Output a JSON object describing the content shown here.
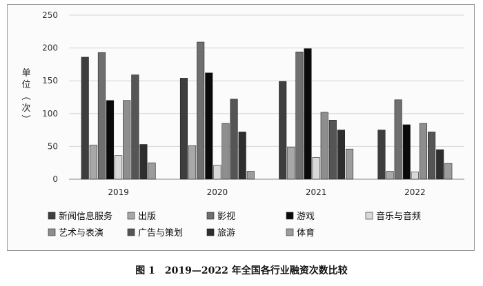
{
  "chart_data": {
    "type": "bar",
    "categories": [
      "2019",
      "2020",
      "2021",
      "2022"
    ],
    "ylabel": "单位（次）",
    "ylim": [
      0,
      250
    ],
    "yticks": [
      0,
      50,
      100,
      150,
      200,
      250
    ],
    "grid": true,
    "legend_position": "bottom",
    "series": [
      {
        "name": "新闻信息服务",
        "color": "#3e3e3e",
        "values": [
          186,
          154,
          149,
          75
        ]
      },
      {
        "name": "出版",
        "color": "#a8a8a8",
        "values": [
          52,
          51,
          49,
          12
        ]
      },
      {
        "name": "影视",
        "color": "#6f6f6f",
        "values": [
          193,
          209,
          194,
          121
        ]
      },
      {
        "name": "游戏",
        "color": "#0a0a0a",
        "values": [
          120,
          162,
          199,
          83
        ]
      },
      {
        "name": "音乐与音频",
        "color": "#d9d9d9",
        "values": [
          36,
          21,
          33,
          11
        ]
      },
      {
        "name": "艺术与表演",
        "color": "#8e8e8e",
        "values": [
          120,
          85,
          102,
          85
        ]
      },
      {
        "name": "广告与策划",
        "color": "#555555",
        "values": [
          159,
          122,
          90,
          72
        ]
      },
      {
        "name": "旅游",
        "color": "#2e2e2e",
        "values": [
          53,
          72,
          75,
          45
        ]
      },
      {
        "name": "体育",
        "color": "#9c9c9c",
        "values": [
          25,
          12,
          46,
          24
        ]
      }
    ]
  },
  "caption": "图 1　2019—2022 年全国各行业融资次数比较"
}
